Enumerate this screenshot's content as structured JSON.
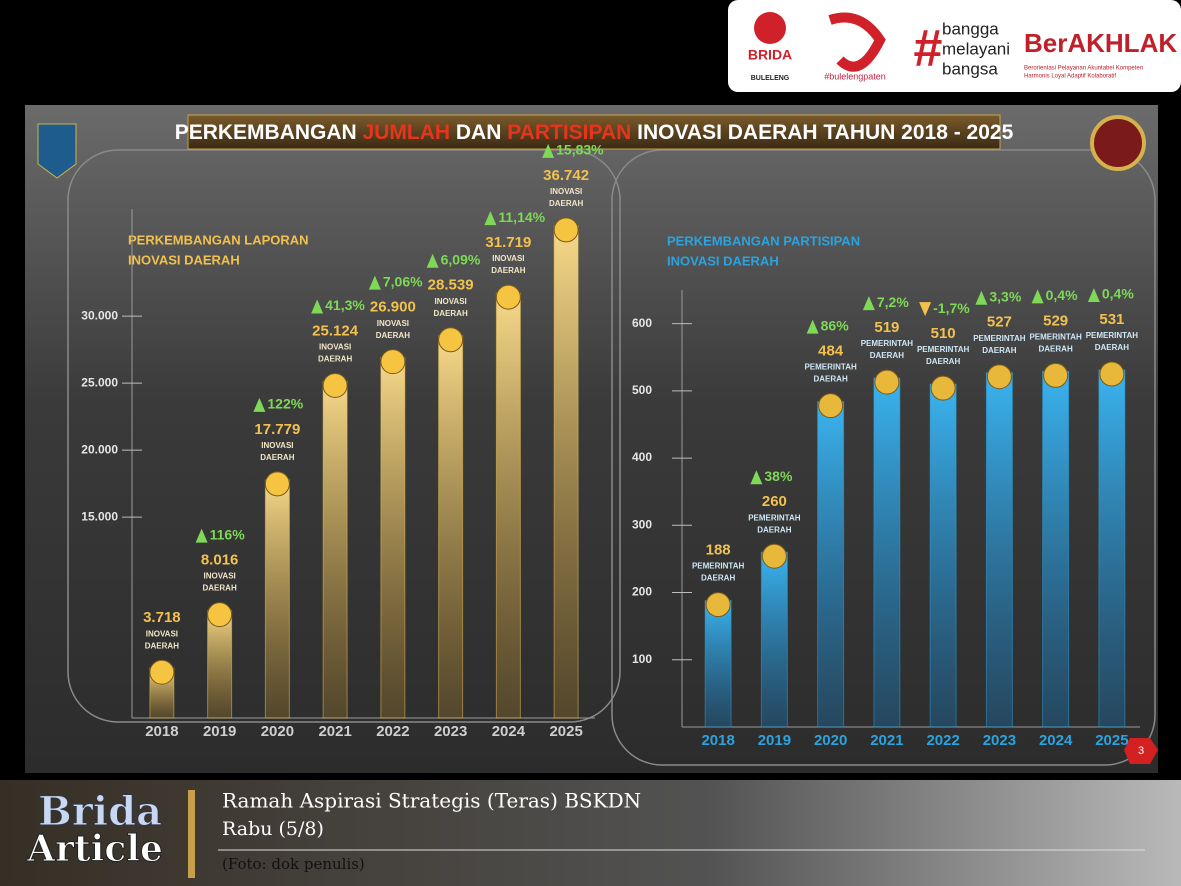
{
  "header": {
    "title_parts": [
      "PERKEMBANGAN ",
      "JUMLAH",
      " DAN ",
      "PARTISIPAN",
      " INOVASI DAERAH TAHUN 2018 - 2025"
    ],
    "slide_number": "3"
  },
  "logos": {
    "brida": "BRIDA",
    "kabupaten": "BULELENG",
    "tagline": "#bulelengpaten",
    "hash": "#",
    "bangga": [
      "bangga",
      "melayani",
      "bangsa"
    ],
    "berakhlak": "BerAKHLAK",
    "berakhlak_sub": [
      "Berorientasi Pelayanan Akuntabel Kompeten",
      "Harmonis Loyal Adaptif Kolaboratif"
    ]
  },
  "chart_data": [
    {
      "type": "bar",
      "title": [
        "PERKEMBANGAN LAPORAN",
        "INOVASI DAERAH"
      ],
      "categories": [
        "2018",
        "2019",
        "2020",
        "2021",
        "2022",
        "2023",
        "2024",
        "2025"
      ],
      "values": [
        3718,
        8016,
        17779,
        25124,
        26900,
        28539,
        31719,
        36742
      ],
      "value_labels": [
        "3.718",
        "8.016",
        "17.779",
        "25.124",
        "26.900",
        "28.539",
        "31.719",
        "36.742"
      ],
      "bar_unit": [
        "INOVASI",
        "DAERAH"
      ],
      "growth": [
        null,
        116,
        122,
        41.3,
        7.06,
        6.09,
        11.14,
        15.83
      ],
      "growth_labels": [
        null,
        "116%",
        "122%",
        "41,3%",
        "7,06%",
        "6,09%",
        "11,14%",
        "15,83%"
      ],
      "color": "#f2c14e",
      "ylim": [
        0,
        38000
      ],
      "yticks": [
        {
          "value": 15000,
          "label": "15.000"
        },
        {
          "value": 20000,
          "label": "20.000"
        },
        {
          "value": 25000,
          "label": "25.000"
        },
        {
          "value": 30000,
          "label": "30.000"
        }
      ]
    },
    {
      "type": "bar",
      "title": [
        "PERKEMBANGAN PARTISIPAN",
        "INOVASI DAERAH"
      ],
      "categories": [
        "2018",
        "2019",
        "2020",
        "2021",
        "2022",
        "2023",
        "2024",
        "2025"
      ],
      "values": [
        188,
        260,
        484,
        519,
        510,
        527,
        529,
        531
      ],
      "bar_unit": [
        "PEMERINTAH",
        "DAERAH"
      ],
      "growth": [
        null,
        38,
        86,
        7.2,
        -1.7,
        3.3,
        0.4,
        0.4
      ],
      "growth_labels": [
        null,
        "38%",
        "86%",
        "7,2%",
        "-1,7%",
        "3,3%",
        "0,4%",
        "0,4%"
      ],
      "color": "#2aa3e0",
      "ylim": [
        0,
        650
      ],
      "yticks": [
        100,
        200,
        300,
        400,
        500,
        600
      ]
    }
  ],
  "caption": {
    "brand": [
      "Brida",
      "Article"
    ],
    "title": "Ramah Aspirasi Strategis (Teras) BSKDN",
    "date": "Rabu (5/8)",
    "credit": "(Foto: dok penulis)"
  }
}
